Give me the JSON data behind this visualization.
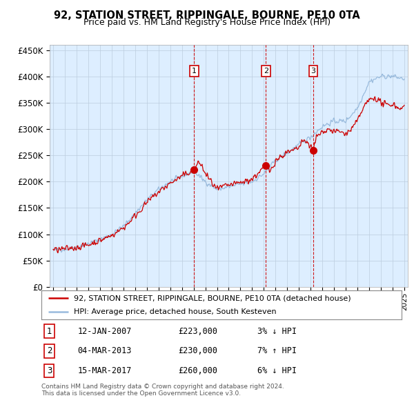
{
  "title": "92, STATION STREET, RIPPINGALE, BOURNE, PE10 0TA",
  "subtitle": "Price paid vs. HM Land Registry's House Price Index (HPI)",
  "ylim": [
    0,
    460000
  ],
  "yticks": [
    0,
    50000,
    100000,
    150000,
    200000,
    250000,
    300000,
    350000,
    400000,
    450000
  ],
  "ytick_labels": [
    "£0",
    "£50K",
    "£100K",
    "£150K",
    "£200K",
    "£250K",
    "£300K",
    "£350K",
    "£400K",
    "£450K"
  ],
  "xlim_start": 1994.7,
  "xlim_end": 2025.3,
  "xtick_years": [
    1995,
    1996,
    1997,
    1998,
    1999,
    2000,
    2001,
    2002,
    2003,
    2004,
    2005,
    2006,
    2007,
    2008,
    2009,
    2010,
    2011,
    2012,
    2013,
    2014,
    2015,
    2016,
    2017,
    2018,
    2019,
    2020,
    2021,
    2022,
    2023,
    2024,
    2025
  ],
  "sale_dates": [
    2007.04,
    2013.17,
    2017.21
  ],
  "sale_prices": [
    223000,
    230000,
    260000
  ],
  "sale_labels": [
    "1",
    "2",
    "3"
  ],
  "sale_info": [
    {
      "num": "1",
      "date": "12-JAN-2007",
      "price": "£223,000",
      "hpi": "3% ↓ HPI"
    },
    {
      "num": "2",
      "date": "04-MAR-2013",
      "price": "£230,000",
      "hpi": "7% ↑ HPI"
    },
    {
      "num": "3",
      "date": "15-MAR-2017",
      "price": "£260,000",
      "hpi": "6% ↓ HPI"
    }
  ],
  "legend_line1": "92, STATION STREET, RIPPINGALE, BOURNE, PE10 0TA (detached house)",
  "legend_line2": "HPI: Average price, detached house, South Kesteven",
  "footer1": "Contains HM Land Registry data © Crown copyright and database right 2024.",
  "footer2": "This data is licensed under the Open Government Licence v3.0.",
  "red_color": "#cc0000",
  "blue_color": "#99bbdd",
  "bg_color": "#ddeeff",
  "grid_color": "#bbccdd",
  "hpi_anchors_x": [
    1995.0,
    1996.0,
    1997.0,
    1998.0,
    1999.0,
    2000.0,
    2001.0,
    2002.0,
    2003.0,
    2004.0,
    2005.0,
    2006.0,
    2007.0,
    2008.0,
    2009.0,
    2010.0,
    2011.0,
    2012.0,
    2013.0,
    2014.0,
    2015.0,
    2016.0,
    2017.0,
    2018.0,
    2019.0,
    2020.0,
    2021.0,
    2022.0,
    2023.0,
    2024.0,
    2025.0
  ],
  "hpi_anchors_y": [
    70000,
    72000,
    76000,
    82000,
    90000,
    100000,
    115000,
    140000,
    165000,
    185000,
    200000,
    210000,
    220000,
    200000,
    185000,
    190000,
    195000,
    200000,
    215000,
    240000,
    255000,
    270000,
    285000,
    305000,
    315000,
    315000,
    340000,
    390000,
    400000,
    400000,
    395000
  ],
  "red_anchors_x": [
    1995.0,
    1996.0,
    1997.0,
    1998.0,
    1999.0,
    2000.0,
    2001.0,
    2002.0,
    2003.0,
    2004.0,
    2005.0,
    2006.0,
    2007.04,
    2007.5,
    2008.0,
    2008.5,
    2009.0,
    2009.5,
    2010.0,
    2011.0,
    2012.0,
    2013.17,
    2013.5,
    2014.0,
    2014.5,
    2015.0,
    2015.5,
    2016.0,
    2016.5,
    2017.21,
    2017.5,
    2018.0,
    2018.5,
    2019.0,
    2019.5,
    2020.0,
    2020.5,
    2021.0,
    2021.5,
    2022.0,
    2022.5,
    2023.0,
    2023.5,
    2024.0,
    2024.5,
    2025.0
  ],
  "red_anchors_y": [
    70000,
    72000,
    75000,
    80000,
    88000,
    98000,
    112000,
    135000,
    160000,
    180000,
    197000,
    210000,
    223000,
    238000,
    215000,
    200000,
    185000,
    190000,
    193000,
    198000,
    205000,
    230000,
    220000,
    240000,
    248000,
    255000,
    258000,
    265000,
    280000,
    260000,
    285000,
    295000,
    300000,
    295000,
    295000,
    290000,
    300000,
    315000,
    340000,
    355000,
    360000,
    350000,
    345000,
    348000,
    340000,
    342000
  ]
}
